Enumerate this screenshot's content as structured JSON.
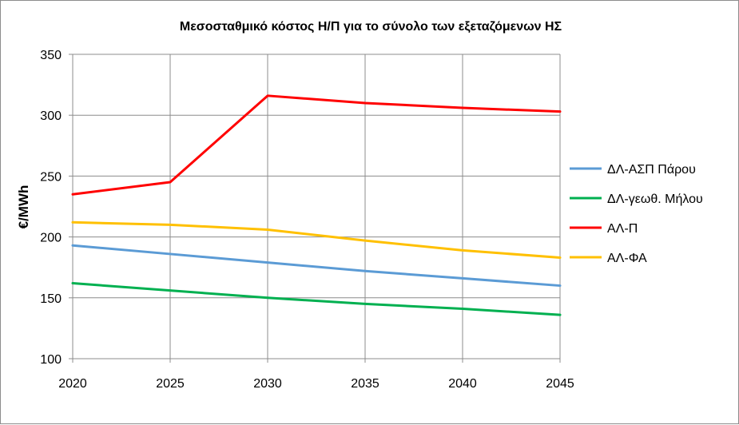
{
  "chart_data": {
    "type": "line",
    "title": "Μεσοσταθμικό κόστος Η/Π για το σύνολο των εξεταζόμενων ΗΣ",
    "xlabel": "",
    "ylabel": "€/MWh",
    "x": [
      2020,
      2025,
      2030,
      2035,
      2040,
      2045
    ],
    "x_tick_labels": [
      "2020",
      "2025",
      "2030",
      "2035",
      "2040",
      "2045"
    ],
    "ylim": [
      100,
      350
    ],
    "y_ticks": [
      100,
      150,
      200,
      250,
      300,
      350
    ],
    "y_tick_labels": [
      "100",
      "150",
      "200",
      "250",
      "300",
      "350"
    ],
    "grid": "vertical and horizontal",
    "legend_position": "right",
    "series": [
      {
        "name": "ΔΛ-ΑΣΠ Πάρου",
        "color": "#5b9bd5",
        "values": [
          193,
          186,
          179,
          172,
          166,
          160
        ]
      },
      {
        "name": "ΔΛ-γεωθ. Μήλου",
        "color": "#00b050",
        "values": [
          162,
          156,
          150,
          145,
          141,
          136
        ]
      },
      {
        "name": "ΑΛ-Π",
        "color": "#ff0000",
        "values": [
          235,
          245,
          316,
          310,
          306,
          303
        ]
      },
      {
        "name": "ΑΛ-ΦΑ",
        "color": "#ffc000",
        "values": [
          212,
          210,
          206,
          197,
          189,
          183
        ]
      }
    ]
  }
}
